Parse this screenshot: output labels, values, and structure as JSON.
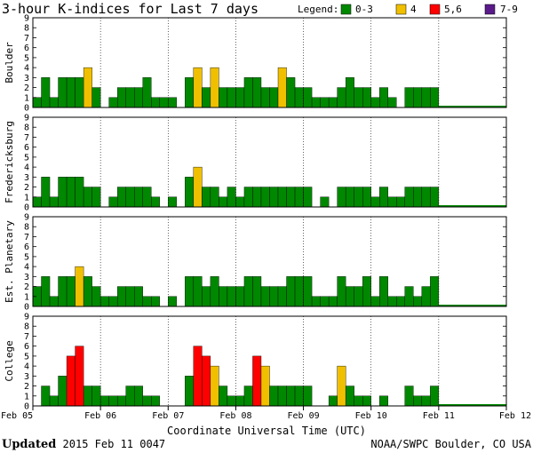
{
  "chart_data": {
    "type": "bar",
    "title": "3-hour K-indices for Last 7 days",
    "xlabel": "Coordinate Universal Time (UTC)",
    "x_ticks": [
      "Feb 05",
      "Feb 06",
      "Feb 07",
      "Feb 08",
      "Feb 09",
      "Feb 10",
      "Feb 11",
      "Feb 12"
    ],
    "y_ticks": [
      "0",
      "1",
      "2",
      "3",
      "4",
      "5",
      "6",
      "7",
      "8",
      "9"
    ],
    "ylim": [
      0,
      9
    ],
    "legend": {
      "label": "Legend:",
      "items": [
        {
          "label": "0-3",
          "color": "#008800"
        },
        {
          "label": "4",
          "color": "#f0c000"
        },
        {
          "label": "5,6",
          "color": "#ff0000"
        },
        {
          "label": "7-9",
          "color": "#5a1a8a"
        }
      ]
    },
    "panels": [
      {
        "name": "Boulder",
        "values": [
          1,
          3,
          1,
          3,
          3,
          3,
          4,
          2,
          0,
          1,
          2,
          2,
          2,
          3,
          1,
          1,
          1,
          0,
          3,
          4,
          2,
          4,
          2,
          2,
          2,
          3,
          3,
          2,
          2,
          4,
          3,
          2,
          2,
          1,
          1,
          1,
          2,
          3,
          2,
          2,
          1,
          2,
          1,
          0,
          2,
          2,
          2,
          2
        ]
      },
      {
        "name": "Fredericksburg",
        "values": [
          1,
          3,
          1,
          3,
          3,
          3,
          2,
          2,
          0,
          1,
          2,
          2,
          2,
          2,
          1,
          0,
          1,
          0,
          3,
          4,
          2,
          2,
          1,
          2,
          1,
          2,
          2,
          2,
          2,
          2,
          2,
          2,
          2,
          0,
          1,
          0,
          2,
          2,
          2,
          2,
          1,
          2,
          1,
          1,
          2,
          2,
          2,
          2
        ]
      },
      {
        "name": "Est. Planetary",
        "values": [
          2,
          3,
          1,
          3,
          3,
          4,
          3,
          2,
          1,
          1,
          2,
          2,
          2,
          1,
          1,
          0,
          1,
          0,
          3,
          3,
          2,
          3,
          2,
          2,
          2,
          3,
          3,
          2,
          2,
          2,
          3,
          3,
          3,
          1,
          1,
          1,
          3,
          2,
          2,
          3,
          1,
          3,
          1,
          1,
          2,
          1,
          2,
          3
        ]
      },
      {
        "name": "College",
        "values": [
          0,
          2,
          1,
          3,
          5,
          6,
          2,
          2,
          1,
          1,
          1,
          2,
          2,
          1,
          1,
          0,
          0,
          0,
          3,
          6,
          5,
          4,
          2,
          1,
          1,
          2,
          5,
          4,
          2,
          2,
          2,
          2,
          2,
          0,
          0,
          1,
          4,
          2,
          1,
          1,
          0,
          1,
          0,
          0,
          2,
          1,
          1,
          2
        ]
      }
    ]
  },
  "footer": {
    "updated_label": "Updated",
    "updated_value": "2015 Feb 11 0047",
    "source": "NOAA/SWPC Boulder, CO USA"
  }
}
